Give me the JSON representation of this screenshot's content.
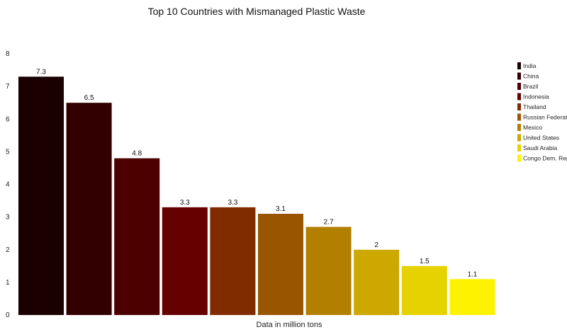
{
  "chart_data": {
    "type": "bar",
    "title": "Top 10 Countries with Mismanaged Plastic Waste",
    "xlabel": "Data in million tons",
    "ylabel": "",
    "ylim": [
      0,
      8
    ],
    "yticks": [
      0,
      1,
      2,
      3,
      4,
      5,
      6,
      7,
      8
    ],
    "grid": false,
    "legend_position": "right",
    "categories": [
      "India",
      "China",
      "Brazil",
      "Indonesia",
      "Thailand",
      "Russian Federation",
      "Mexico",
      "United States",
      "Saudi Arabia",
      "Congo Dem. Rep"
    ],
    "values": [
      7.3,
      6.5,
      4.8,
      3.3,
      3.3,
      3.1,
      2.7,
      2,
      1.5,
      1.1
    ],
    "value_labels": [
      "7.3",
      "6.5",
      "4.8",
      "3.3",
      "3.3",
      "3.1",
      "2.7",
      "2",
      "1.5",
      "1.1"
    ],
    "colors": [
      "#1a0000",
      "#330000",
      "#4d0000",
      "#660000",
      "#802b00",
      "#995500",
      "#b37f00",
      "#cca800",
      "#e6d200",
      "#fff200"
    ]
  }
}
